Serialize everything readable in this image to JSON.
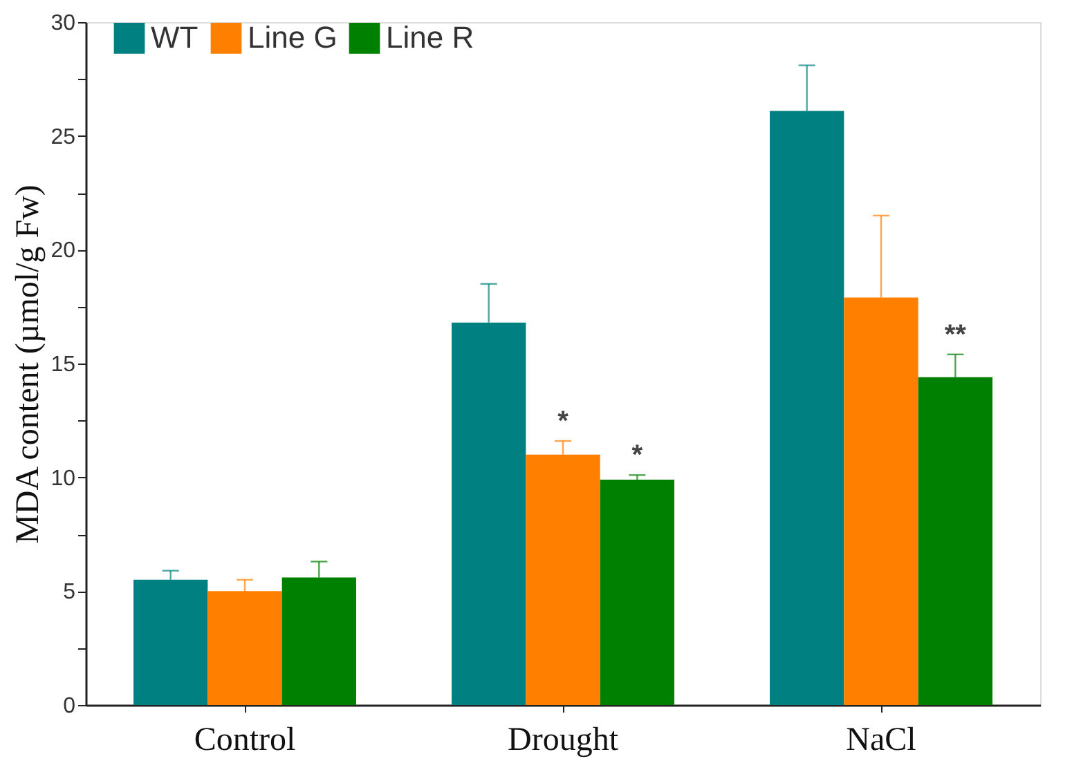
{
  "chart_data": {
    "type": "bar",
    "ylabel": "MDA content (µmol/g Fw)",
    "categories": [
      "Control",
      "Drought",
      "NaCl"
    ],
    "series": [
      {
        "name": "WT",
        "color": "#008080",
        "values": [
          5.5,
          16.8,
          26.1
        ],
        "errors": [
          [
            5.5,
            5.9
          ],
          [
            16.8,
            18.5
          ],
          [
            26.1,
            28.1
          ]
        ]
      },
      {
        "name": "Line G",
        "color": "#ff8000",
        "values": [
          5.0,
          11.0,
          17.9
        ],
        "errors": [
          [
            5.0,
            5.5
          ],
          [
            11.0,
            11.6
          ],
          [
            17.9,
            21.5
          ]
        ],
        "value_labels": [
          null,
          "*",
          null
        ]
      },
      {
        "name": "Line R",
        "color": "#008000",
        "values": [
          5.6,
          9.9,
          14.4
        ],
        "errors": [
          [
            5.6,
            6.3
          ],
          [
            9.9,
            10.1
          ],
          [
            14.4,
            15.4
          ]
        ],
        "value_labels": [
          null,
          "*",
          "**"
        ]
      }
    ],
    "ylim": [
      0,
      30
    ],
    "yticks": [
      0,
      {
        "value": 2.5,
        "label": null
      },
      5,
      {
        "value": 7.5,
        "label": null
      },
      10,
      {
        "value": 12.5,
        "label": null
      },
      15,
      {
        "value": 17.5,
        "label": null
      },
      20,
      {
        "value": 22.5,
        "label": null
      },
      25,
      {
        "value": 27.5,
        "label": null
      },
      30
    ],
    "grid": false,
    "legend": "top left"
  }
}
